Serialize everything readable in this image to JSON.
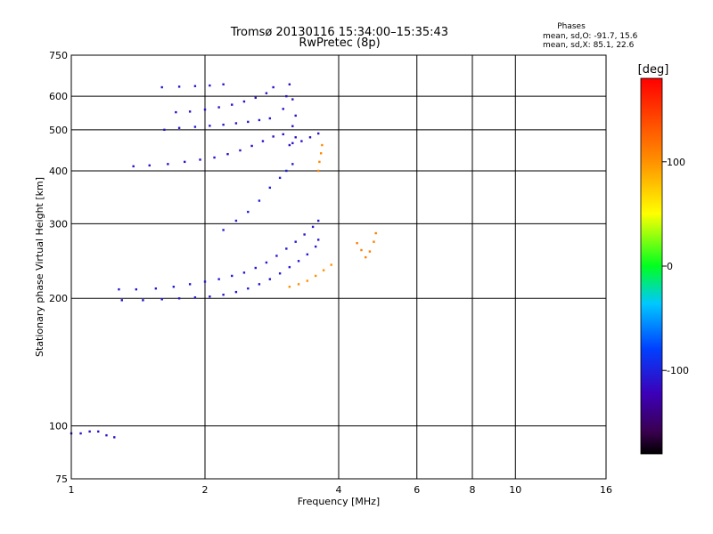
{
  "chart_data": {
    "type": "scatter",
    "title": "Tromsø 20130116 15:34:00–15:35:43",
    "subtitle": "RwPretec (8p)",
    "xlabel": "Frequency [MHz]",
    "ylabel": "Stationary phase Virtual Height [km]",
    "x_scale": "log",
    "y_scale": "log",
    "xlim": [
      1,
      16
    ],
    "ylim": [
      75,
      750
    ],
    "x_ticks": [
      1,
      2,
      4,
      6,
      8,
      10,
      16
    ],
    "x_tick_labels": [
      "1",
      "2",
      "4",
      "6",
      "8",
      "10",
      "16"
    ],
    "y_ticks": [
      75,
      100,
      200,
      300,
      400,
      500,
      600,
      750
    ],
    "y_tick_labels": [
      "75",
      "100",
      "200",
      "300",
      "400",
      "500",
      "600",
      "750"
    ],
    "grid": true,
    "stats": {
      "heading": "Phases",
      "line_o": "mean, sd,O: -91.7, 15.6",
      "line_x": "mean, sd,X:  85.1, 22.6"
    },
    "colorbar": {
      "label": "[deg]",
      "range": [
        -180,
        180
      ],
      "ticks": [
        100,
        0,
        -100
      ],
      "tick_labels": [
        "100",
        "0",
        "-100"
      ]
    },
    "traces": [
      {
        "phase": -105,
        "points": [
          [
            1.28,
            210
          ],
          [
            1.4,
            210
          ],
          [
            1.55,
            211
          ],
          [
            1.7,
            213
          ],
          [
            1.85,
            216
          ],
          [
            2.0,
            219
          ],
          [
            2.15,
            222
          ],
          [
            2.3,
            226
          ],
          [
            2.45,
            230
          ],
          [
            2.6,
            236
          ],
          [
            2.75,
            243
          ],
          [
            2.9,
            252
          ],
          [
            3.05,
            262
          ],
          [
            3.2,
            272
          ],
          [
            3.35,
            283
          ],
          [
            3.5,
            295
          ],
          [
            3.6,
            305
          ]
        ]
      },
      {
        "phase": -105,
        "points": [
          [
            1.3,
            198
          ],
          [
            1.45,
            198
          ],
          [
            1.6,
            199
          ],
          [
            1.75,
            200
          ],
          [
            1.9,
            201
          ],
          [
            2.05,
            202
          ],
          [
            2.2,
            204
          ],
          [
            2.35,
            207
          ],
          [
            2.5,
            211
          ],
          [
            2.65,
            216
          ],
          [
            2.8,
            222
          ],
          [
            2.95,
            229
          ],
          [
            3.1,
            237
          ],
          [
            3.25,
            245
          ],
          [
            3.4,
            254
          ],
          [
            3.55,
            265
          ],
          [
            3.6,
            275
          ]
        ]
      },
      {
        "phase": -110,
        "points": [
          [
            1.38,
            410
          ],
          [
            1.5,
            412
          ],
          [
            1.65,
            415
          ],
          [
            1.8,
            420
          ],
          [
            1.95,
            425
          ],
          [
            2.1,
            430
          ],
          [
            2.25,
            438
          ],
          [
            2.4,
            447
          ],
          [
            2.55,
            458
          ],
          [
            2.7,
            470
          ],
          [
            2.85,
            482
          ],
          [
            3.0,
            488
          ],
          [
            3.15,
            465
          ],
          [
            3.3,
            470
          ],
          [
            3.45,
            480
          ],
          [
            3.6,
            490
          ]
        ]
      },
      {
        "phase": -105,
        "points": [
          [
            1.62,
            500
          ],
          [
            1.75,
            505
          ],
          [
            1.9,
            508
          ],
          [
            2.05,
            511
          ],
          [
            2.2,
            514
          ],
          [
            2.35,
            518
          ],
          [
            2.5,
            522
          ],
          [
            2.65,
            527
          ],
          [
            2.8,
            532
          ]
        ]
      },
      {
        "phase": -110,
        "points": [
          [
            1.72,
            550
          ],
          [
            1.85,
            552
          ],
          [
            2.0,
            558
          ],
          [
            2.15,
            565
          ],
          [
            2.3,
            573
          ],
          [
            2.45,
            583
          ],
          [
            2.6,
            595
          ],
          [
            2.75,
            610
          ],
          [
            2.85,
            630
          ]
        ]
      },
      {
        "phase": -105,
        "points": [
          [
            1.6,
            630
          ],
          [
            1.75,
            632
          ],
          [
            1.9,
            634
          ],
          [
            2.05,
            636
          ],
          [
            2.2,
            640
          ]
        ]
      },
      {
        "phase": -100,
        "points": [
          [
            2.2,
            290
          ],
          [
            2.35,
            305
          ],
          [
            2.5,
            320
          ],
          [
            2.65,
            340
          ],
          [
            2.8,
            365
          ],
          [
            2.95,
            385
          ],
          [
            3.05,
            400
          ],
          [
            3.15,
            415
          ]
        ]
      },
      {
        "phase": -112,
        "points": [
          [
            3.0,
            560
          ],
          [
            3.05,
            600
          ],
          [
            3.1,
            640
          ],
          [
            3.15,
            590
          ],
          [
            3.2,
            540
          ],
          [
            3.15,
            510
          ],
          [
            3.2,
            480
          ],
          [
            3.1,
            460
          ]
        ]
      },
      {
        "phase": 100,
        "points": [
          [
            3.1,
            213
          ],
          [
            3.25,
            216
          ],
          [
            3.4,
            220
          ],
          [
            3.55,
            226
          ],
          [
            3.7,
            233
          ],
          [
            3.85,
            240
          ]
        ]
      },
      {
        "phase": 105,
        "points": [
          [
            3.6,
            400
          ],
          [
            3.62,
            420
          ],
          [
            3.65,
            440
          ],
          [
            3.67,
            460
          ]
        ]
      },
      {
        "phase": 110,
        "points": [
          [
            4.4,
            270
          ],
          [
            4.5,
            260
          ],
          [
            4.6,
            250
          ],
          [
            4.7,
            258
          ],
          [
            4.8,
            272
          ],
          [
            4.85,
            285
          ]
        ]
      },
      {
        "phase": -110,
        "points": [
          [
            1.0,
            96
          ],
          [
            1.05,
            96
          ],
          [
            1.1,
            97
          ],
          [
            1.15,
            97
          ],
          [
            1.2,
            95
          ],
          [
            1.25,
            94
          ]
        ]
      }
    ]
  }
}
